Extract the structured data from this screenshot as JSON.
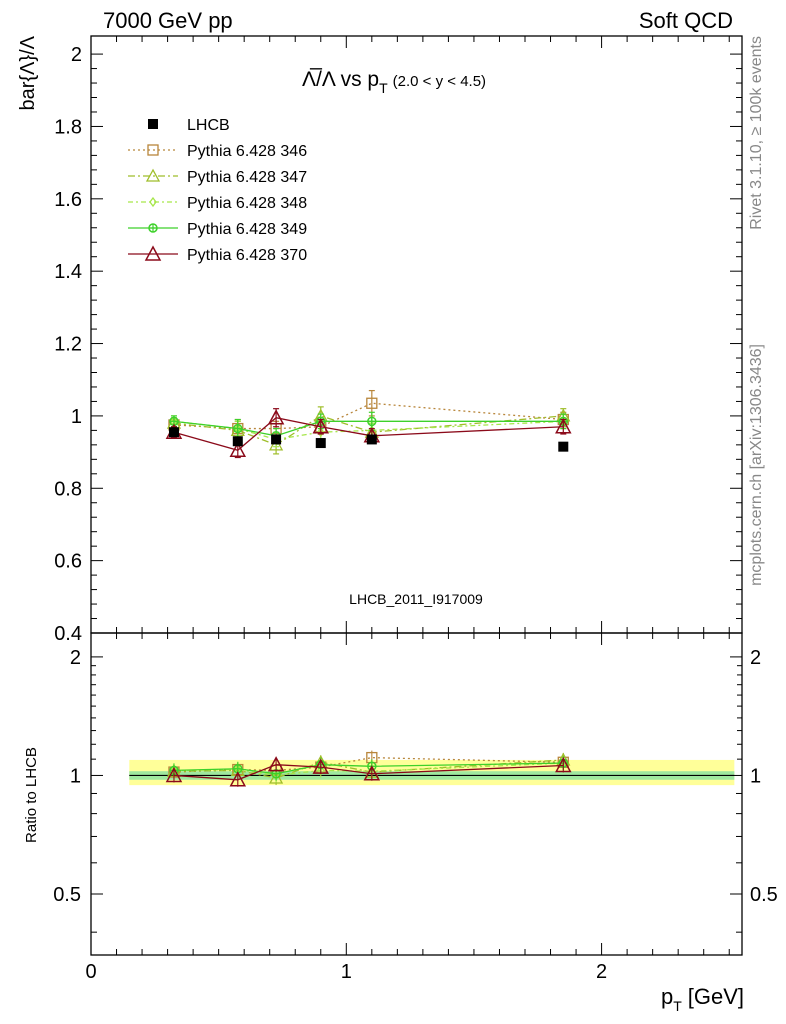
{
  "header": {
    "left": "7000 GeV pp",
    "right": "Soft QCD"
  },
  "side_labels": {
    "rivet": "Rivet 3.1.10, ≥ 100k events",
    "mcplots": "mcplots.cern.ch [arXiv:1306.3436]"
  },
  "watermark": "LHCB_2011_I917009",
  "colors": {
    "LHCB": "#000000",
    "p346": "#b8863b",
    "p347": "#9fbe2a",
    "p348": "#a6e64a",
    "p349": "#3dd12a",
    "p370": "#8b0a1a",
    "band_inner": "#9fe89f",
    "band_outer": "#ffff99"
  },
  "chart_data": [
    {
      "type": "scatter",
      "title_prefix": "Λ̅/Λ vs p",
      "title_sub": "T",
      "title_suffix": "(2.0 < y < 4.5)",
      "ylabel": "bar{Λ}/Λ",
      "xlim": [
        0,
        2.55
      ],
      "ylim": [
        0.4,
        2.05
      ],
      "yticks": [
        "0.4",
        "0.6",
        "0.8",
        "1",
        "1.2",
        "1.4",
        "1.6",
        "1.8",
        "2"
      ],
      "legend_position": "top-left",
      "series": [
        {
          "name": "LHCB",
          "x": [
            0.325,
            0.575,
            0.725,
            0.9,
            1.1,
            1.85
          ],
          "y": [
            0.955,
            0.93,
            0.935,
            0.925,
            0.935,
            0.915
          ],
          "yerr": [
            0.01,
            0.01,
            0.01,
            0.01,
            0.01,
            0.01
          ]
        },
        {
          "name": "Pythia 6.428 346",
          "x": [
            0.325,
            0.575,
            0.725,
            0.9,
            1.1,
            1.85
          ],
          "y": [
            0.975,
            0.965,
            0.965,
            0.97,
            1.035,
            0.99
          ],
          "yerr": [
            0.015,
            0.025,
            0.02,
            0.02,
            0.035,
            0.02
          ]
        },
        {
          "name": "Pythia 6.428 347",
          "x": [
            0.325,
            0.575,
            0.725,
            0.9,
            1.1,
            1.85
          ],
          "y": [
            0.98,
            0.96,
            0.92,
            1.0,
            0.955,
            1.0
          ],
          "yerr": [
            0.015,
            0.025,
            0.025,
            0.025,
            0.025,
            0.02
          ]
        },
        {
          "name": "Pythia 6.428 348",
          "x": [
            0.325,
            0.575,
            0.725,
            0.9,
            1.1,
            1.85
          ],
          "y": [
            0.985,
            0.965,
            0.935,
            0.955,
            0.96,
            0.985
          ],
          "yerr": [
            0.015,
            0.02,
            0.02,
            0.02,
            0.02,
            0.02
          ]
        },
        {
          "name": "Pythia 6.428 349",
          "x": [
            0.325,
            0.575,
            0.725,
            0.9,
            1.1,
            1.85
          ],
          "y": [
            0.985,
            0.965,
            0.945,
            0.985,
            0.985,
            0.985
          ],
          "yerr": [
            0.015,
            0.025,
            0.02,
            0.02,
            0.025,
            0.02
          ]
        },
        {
          "name": "Pythia 6.428 370",
          "x": [
            0.325,
            0.575,
            0.725,
            0.9,
            1.1,
            1.85
          ],
          "y": [
            0.955,
            0.905,
            0.995,
            0.97,
            0.945,
            0.97
          ],
          "yerr": [
            0.015,
            0.02,
            0.025,
            0.02,
            0.02,
            0.02
          ]
        }
      ]
    },
    {
      "type": "scatter",
      "ylabel": "Ratio to LHCB",
      "xlabel_main": "p",
      "xlabel_sub": "T",
      "xlabel_unit": "[GeV]",
      "xlim": [
        0,
        2.55
      ],
      "ylim": [
        0.35,
        2.3
      ],
      "xticks": [
        "0",
        "1",
        "2"
      ],
      "yticks": [
        "0.5",
        "1",
        "2"
      ],
      "band_x": [
        0.15,
        2.52
      ],
      "band_inner": [
        0.975,
        1.025
      ],
      "band_outer": [
        0.945,
        1.095
      ],
      "series": [
        {
          "name": "Pythia 6.428 346",
          "x": [
            0.325,
            0.575,
            0.725,
            0.9,
            1.1,
            1.85
          ],
          "y": [
            1.02,
            1.035,
            1.03,
            1.05,
            1.11,
            1.08
          ]
        },
        {
          "name": "Pythia 6.428 347",
          "x": [
            0.325,
            0.575,
            0.725,
            0.9,
            1.1,
            1.85
          ],
          "y": [
            1.025,
            1.03,
            0.985,
            1.08,
            1.02,
            1.095
          ]
        },
        {
          "name": "Pythia 6.428 348",
          "x": [
            0.325,
            0.575,
            0.725,
            0.9,
            1.1,
            1.85
          ],
          "y": [
            1.03,
            1.035,
            1.0,
            1.03,
            1.025,
            1.075
          ]
        },
        {
          "name": "Pythia 6.428 349",
          "x": [
            0.325,
            0.575,
            0.725,
            0.9,
            1.1,
            1.85
          ],
          "y": [
            1.03,
            1.04,
            1.01,
            1.065,
            1.055,
            1.075
          ]
        },
        {
          "name": "Pythia 6.428 370",
          "x": [
            0.325,
            0.575,
            0.725,
            0.9,
            1.1,
            1.85
          ],
          "y": [
            1.0,
            0.975,
            1.065,
            1.05,
            1.01,
            1.06
          ]
        }
      ]
    }
  ]
}
